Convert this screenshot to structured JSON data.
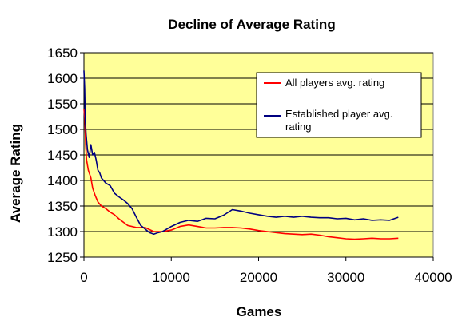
{
  "chart_data": {
    "type": "line",
    "title": "Decline of Average Rating",
    "xlabel": "Games",
    "ylabel": "Average Rating",
    "xlim": [
      0,
      40000
    ],
    "ylim": [
      1250,
      1650
    ],
    "x_ticks": [
      0,
      10000,
      20000,
      30000,
      40000
    ],
    "y_ticks": [
      1250,
      1300,
      1350,
      1400,
      1450,
      1500,
      1550,
      1600,
      1650
    ],
    "grid": "horizontal",
    "legend_position": "top-right",
    "series": [
      {
        "name": "All players avg. rating",
        "color": "#ff0000",
        "points": [
          [
            0,
            1540
          ],
          [
            100,
            1520
          ],
          [
            200,
            1470
          ],
          [
            300,
            1440
          ],
          [
            500,
            1420
          ],
          [
            800,
            1405
          ],
          [
            1000,
            1385
          ],
          [
            1300,
            1370
          ],
          [
            1600,
            1358
          ],
          [
            2000,
            1350
          ],
          [
            2500,
            1345
          ],
          [
            3000,
            1338
          ],
          [
            3500,
            1333
          ],
          [
            4000,
            1325
          ],
          [
            5000,
            1312
          ],
          [
            6000,
            1308
          ],
          [
            7000,
            1308
          ],
          [
            8000,
            1300
          ],
          [
            9000,
            1300
          ],
          [
            10000,
            1303
          ],
          [
            11000,
            1310
          ],
          [
            12000,
            1313
          ],
          [
            13000,
            1310
          ],
          [
            14000,
            1307
          ],
          [
            15000,
            1307
          ],
          [
            16000,
            1308
          ],
          [
            17000,
            1308
          ],
          [
            18000,
            1307
          ],
          [
            19000,
            1305
          ],
          [
            20000,
            1302
          ],
          [
            21000,
            1300
          ],
          [
            22000,
            1298
          ],
          [
            23000,
            1296
          ],
          [
            24000,
            1295
          ],
          [
            25000,
            1294
          ],
          [
            26000,
            1295
          ],
          [
            27000,
            1293
          ],
          [
            28000,
            1290
          ],
          [
            29000,
            1288
          ],
          [
            30000,
            1286
          ],
          [
            31000,
            1285
          ],
          [
            32000,
            1286
          ],
          [
            33000,
            1287
          ],
          [
            34000,
            1286
          ],
          [
            35000,
            1286
          ],
          [
            36000,
            1287
          ]
        ]
      },
      {
        "name": "Established player avg. rating",
        "color": "#000080",
        "points": [
          [
            0,
            1615
          ],
          [
            80,
            1580
          ],
          [
            150,
            1520
          ],
          [
            250,
            1490
          ],
          [
            400,
            1460
          ],
          [
            600,
            1445
          ],
          [
            800,
            1470
          ],
          [
            1000,
            1450
          ],
          [
            1200,
            1455
          ],
          [
            1400,
            1440
          ],
          [
            1600,
            1420
          ],
          [
            1800,
            1415
          ],
          [
            2000,
            1405
          ],
          [
            2500,
            1395
          ],
          [
            3000,
            1390
          ],
          [
            3500,
            1375
          ],
          [
            4000,
            1368
          ],
          [
            4500,
            1362
          ],
          [
            5000,
            1355
          ],
          [
            5500,
            1345
          ],
          [
            6000,
            1328
          ],
          [
            6500,
            1312
          ],
          [
            7000,
            1305
          ],
          [
            7500,
            1298
          ],
          [
            8000,
            1295
          ],
          [
            8500,
            1298
          ],
          [
            9000,
            1300
          ],
          [
            9500,
            1305
          ],
          [
            10000,
            1310
          ],
          [
            11000,
            1318
          ],
          [
            12000,
            1322
          ],
          [
            13000,
            1320
          ],
          [
            14000,
            1326
          ],
          [
            15000,
            1325
          ],
          [
            16000,
            1332
          ],
          [
            17000,
            1343
          ],
          [
            18000,
            1340
          ],
          [
            19000,
            1336
          ],
          [
            20000,
            1333
          ],
          [
            21000,
            1330
          ],
          [
            22000,
            1328
          ],
          [
            23000,
            1330
          ],
          [
            24000,
            1328
          ],
          [
            25000,
            1330
          ],
          [
            26000,
            1328
          ],
          [
            27000,
            1327
          ],
          [
            28000,
            1327
          ],
          [
            29000,
            1325
          ],
          [
            30000,
            1326
          ],
          [
            31000,
            1323
          ],
          [
            32000,
            1325
          ],
          [
            33000,
            1322
          ],
          [
            34000,
            1323
          ],
          [
            35000,
            1322
          ],
          [
            35500,
            1325
          ],
          [
            36000,
            1328
          ]
        ]
      }
    ]
  }
}
